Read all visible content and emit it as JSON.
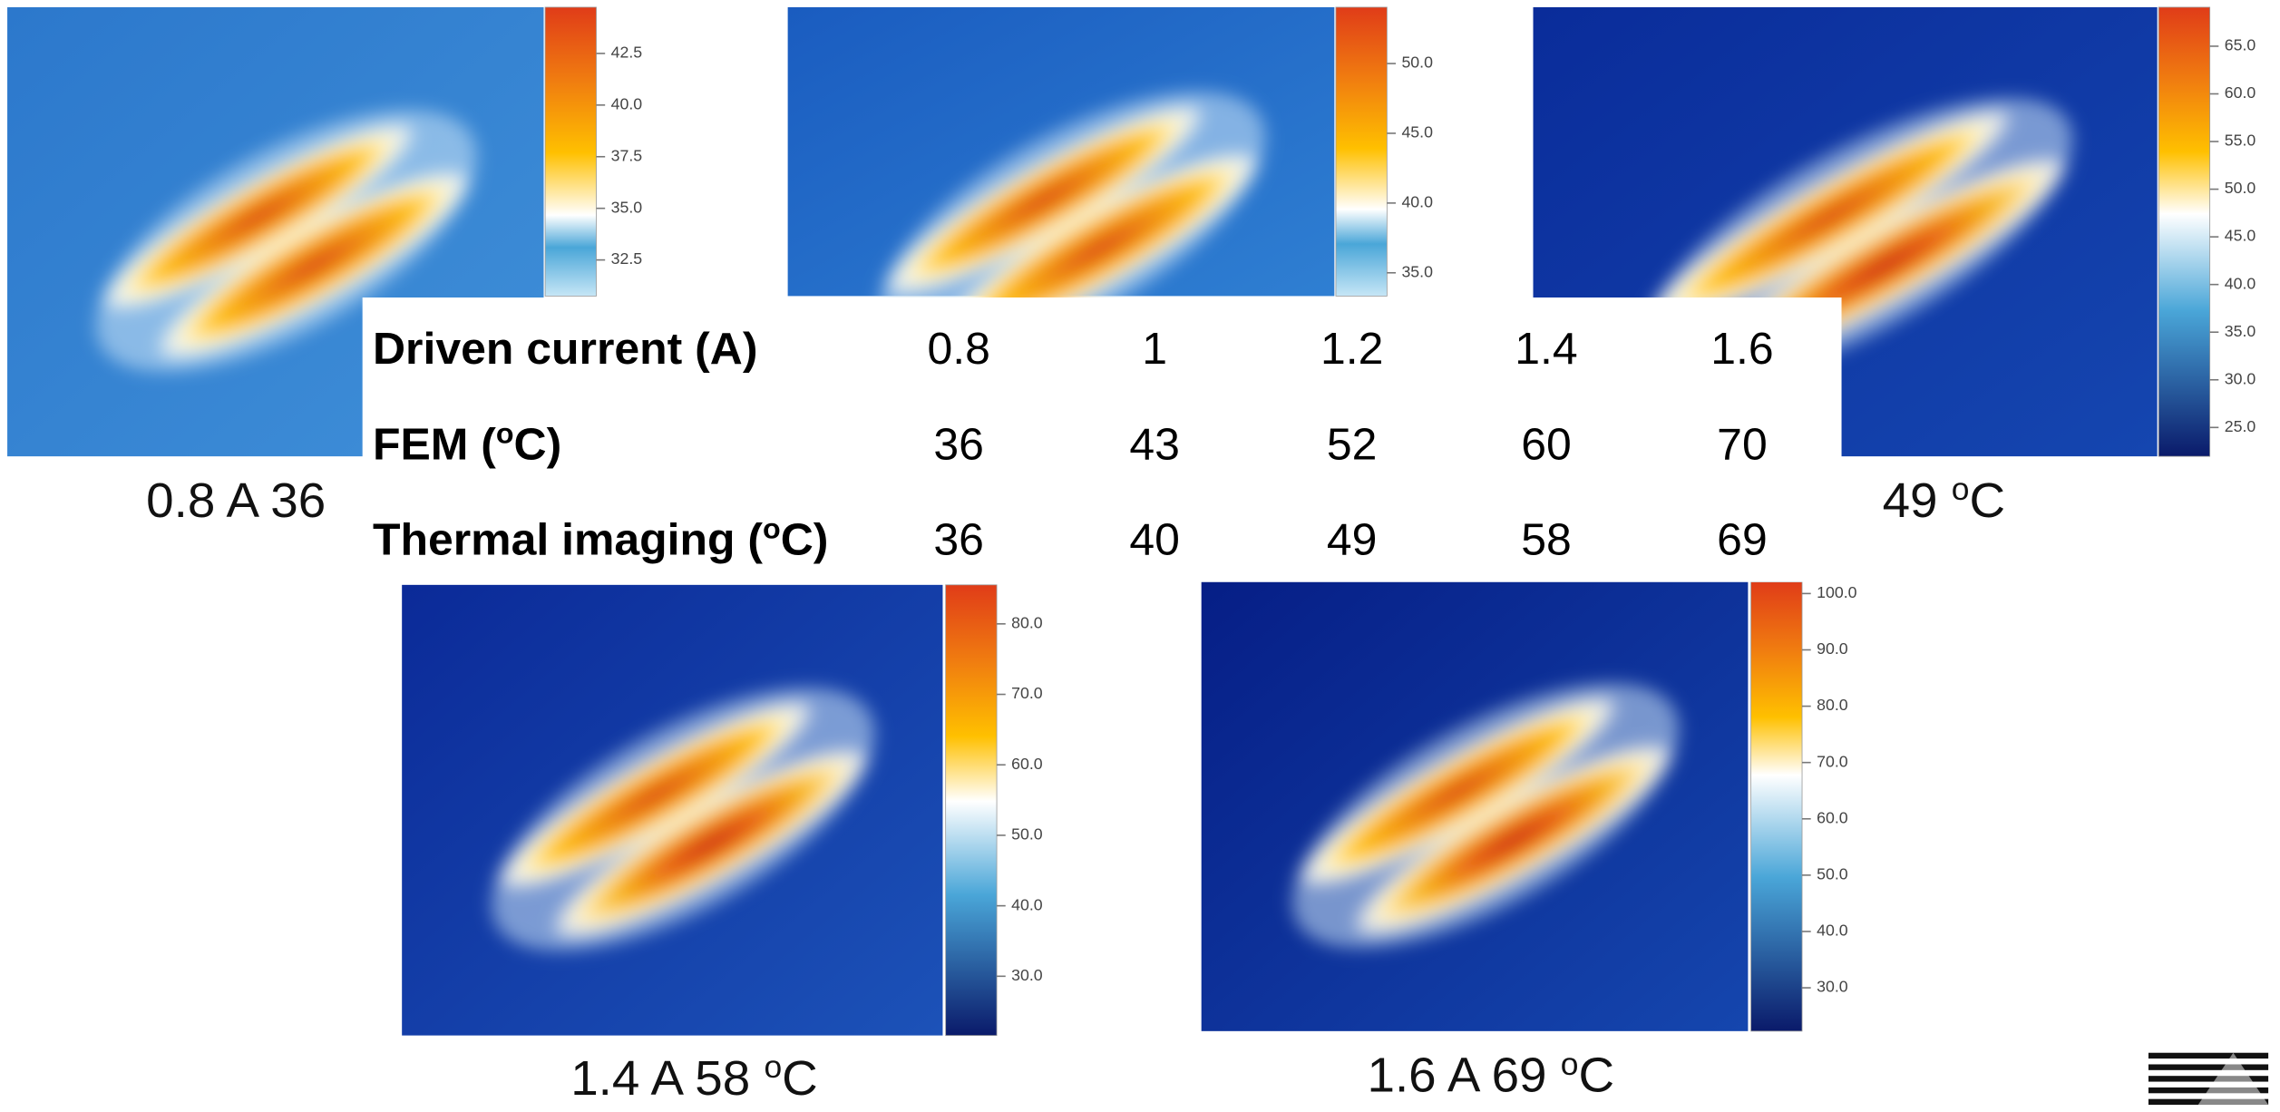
{
  "panels": [
    {
      "caption": [
        "0.8 A 36"
      ],
      "colorbar_ticks": [
        "42.5",
        "40.0",
        "37.5",
        "35.0",
        "32.5"
      ]
    },
    {
      "colorbar_ticks": [
        "50.0",
        "45.0",
        "40.0",
        "35.0"
      ]
    },
    {
      "caption": [
        "49 ",
        "o",
        "C"
      ],
      "colorbar_ticks": [
        "65.0",
        "60.0",
        "55.0",
        "50.0",
        "45.0",
        "40.0",
        "35.0",
        "30.0",
        "25.0"
      ]
    },
    {
      "caption": [
        "1.4 A 58 ",
        "o",
        "C"
      ],
      "colorbar_ticks": [
        "80.0",
        "70.0",
        "60.0",
        "50.0",
        "40.0",
        "30.0"
      ]
    },
    {
      "caption": [
        "1.6 A 69 ",
        "o",
        "C"
      ],
      "colorbar_ticks": [
        "100.0",
        "90.0",
        "80.0",
        "70.0",
        "60.0",
        "50.0",
        "40.0",
        "30.0"
      ]
    }
  ],
  "table": {
    "rows": [
      {
        "label": [
          "Driven current (A)"
        ],
        "cells": [
          "0.8",
          "1",
          "1.2",
          "1.4",
          "1.6"
        ]
      },
      {
        "label": [
          "FEM (",
          "o",
          "C)"
        ],
        "cells": [
          "36",
          "43",
          "52",
          "60",
          "70"
        ]
      },
      {
        "label": [
          "Thermal imaging (",
          "o",
          "C)"
        ],
        "cells": [
          "36",
          "40",
          "49",
          "58",
          "69"
        ]
      }
    ]
  }
}
